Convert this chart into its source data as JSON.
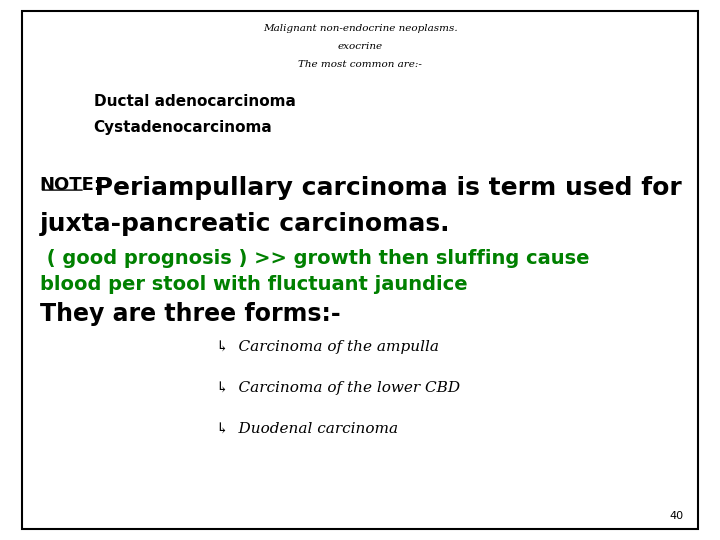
{
  "bg_color": "#ffffff",
  "border_color": "#000000",
  "title1": "Malignant non-endocrine neoplasms.",
  "title2": "exocrine",
  "title3": "The most common are:-",
  "item1": "Ductal adenocarcinoma",
  "item2": "Cystadenocarcinoma",
  "note_label": "NOTE:",
  "note_line1": " Periampullary carcinoma is term used for",
  "note_line2": "juxta-pancreatic carcinomas.",
  "green_text1": " ( good prognosis ) >> growth then sluffing cause",
  "green_text2": "blood per stool with fluctuant jaundice",
  "forms_text": "They are three forms:-",
  "form1": "↳  Carcinoma of the ampulla",
  "form2": "↳  Carcinoma of the lower CBD",
  "form3": "↳  Duodenal carcinoma",
  "page_num": "40",
  "black": "#000000",
  "green": "#008000",
  "title_fontsize": 7.5,
  "item_fontsize": 11,
  "note_label_fontsize": 13,
  "note_fontsize": 18,
  "green_fontsize": 14,
  "forms_fontsize": 17,
  "bullet_fontsize": 11,
  "page_fontsize": 8
}
